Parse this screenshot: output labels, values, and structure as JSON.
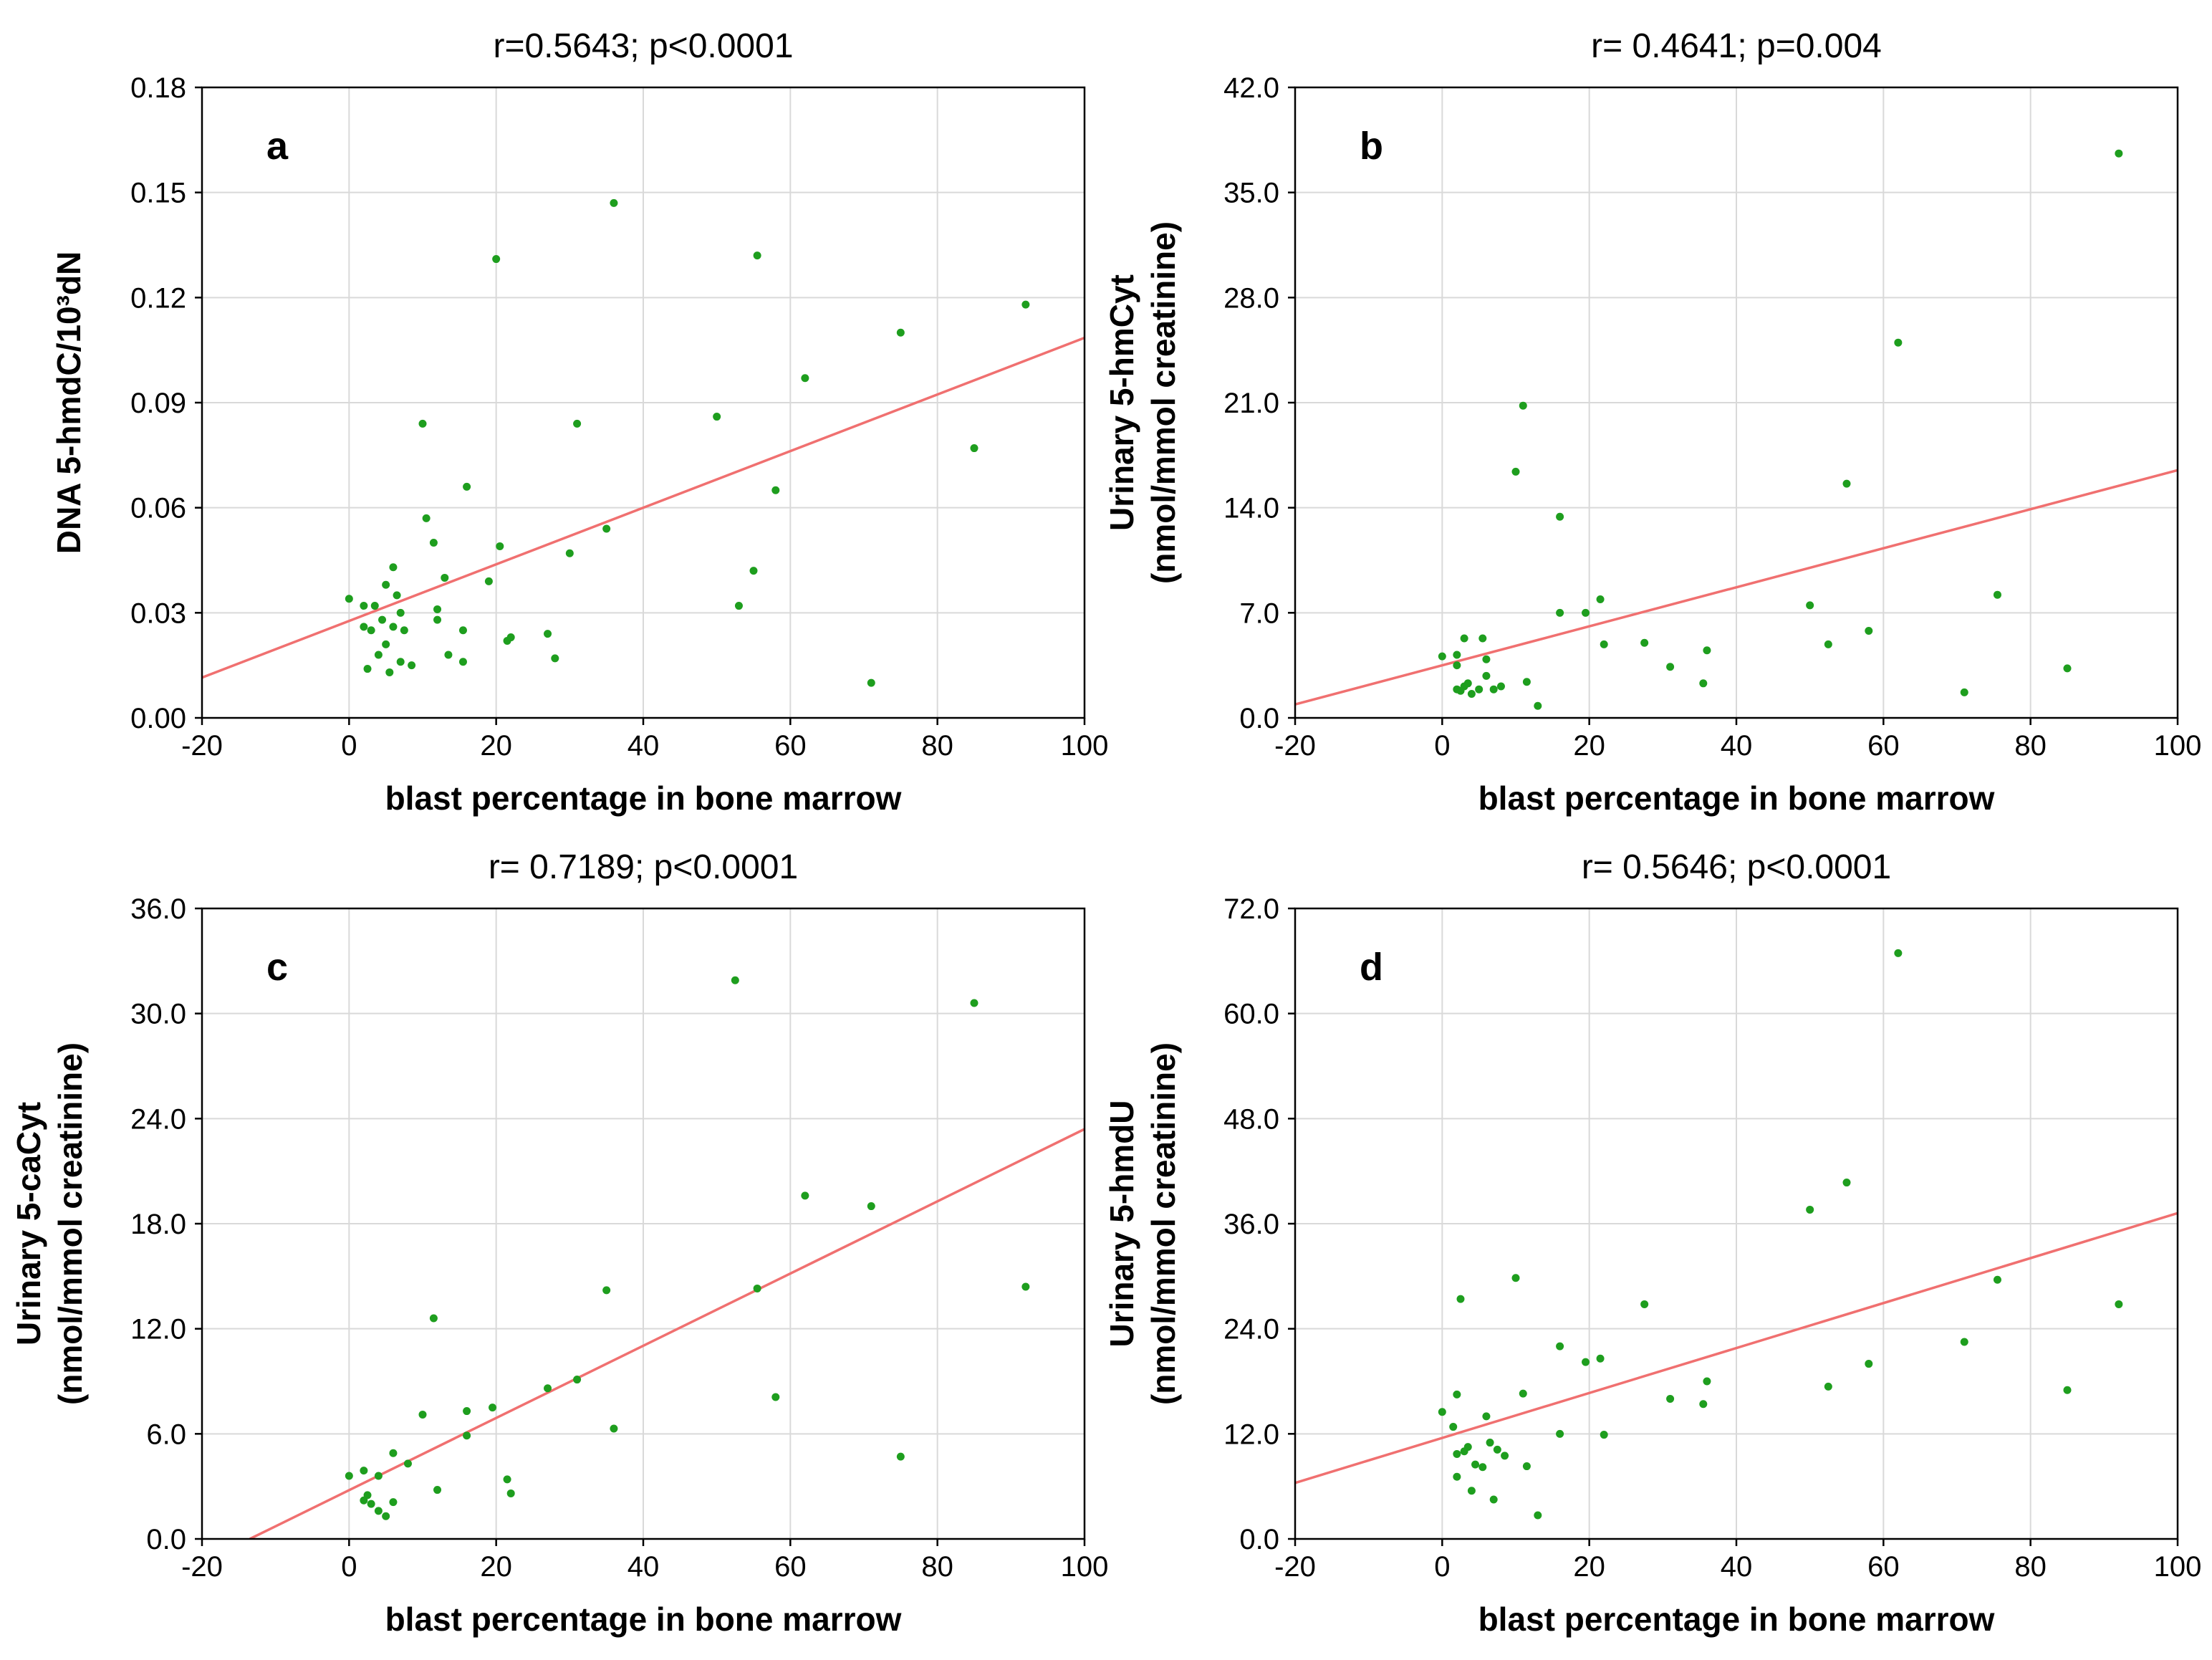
{
  "colors": {
    "points": "#1e9e1e",
    "fit_line": "#f07070",
    "grid": "#d9d9d9"
  },
  "chart_data": [
    {
      "panel": "a",
      "type": "scatter",
      "title": "r=0.5643; p<0.0001",
      "xlabel": "blast percentage in bone marrow",
      "ylabel": [
        "DNA 5-hmdC/10³dN"
      ],
      "xlim": [
        -20,
        100
      ],
      "ylim": [
        0,
        0.18
      ],
      "x_ticks": [
        "-20",
        "0",
        "20",
        "40",
        "60",
        "80",
        "100"
      ],
      "y_ticks": [
        "0.00",
        "0.03",
        "0.06",
        "0.09",
        "0.12",
        "0.15",
        "0.18"
      ],
      "grid": true,
      "fit_line": {
        "x": [
          -20,
          100
        ],
        "y": [
          0.0115,
          0.1085
        ]
      },
      "points": [
        [
          0,
          0.034
        ],
        [
          2,
          0.026
        ],
        [
          2,
          0.032
        ],
        [
          2.5,
          0.014
        ],
        [
          3,
          0.025
        ],
        [
          3.5,
          0.032
        ],
        [
          4,
          0.018
        ],
        [
          4.5,
          0.028
        ],
        [
          5,
          0.021
        ],
        [
          5,
          0.038
        ],
        [
          5.5,
          0.013
        ],
        [
          6,
          0.026
        ],
        [
          6,
          0.043
        ],
        [
          6.5,
          0.035
        ],
        [
          7,
          0.016
        ],
        [
          7,
          0.03
        ],
        [
          7.5,
          0.025
        ],
        [
          8.5,
          0.015
        ],
        [
          10,
          0.084
        ],
        [
          10.5,
          0.057
        ],
        [
          11.5,
          0.05
        ],
        [
          12,
          0.028
        ],
        [
          12,
          0.031
        ],
        [
          13,
          0.04
        ],
        [
          13.5,
          0.018
        ],
        [
          15.5,
          0.016
        ],
        [
          15.5,
          0.025
        ],
        [
          16,
          0.066
        ],
        [
          19,
          0.039
        ],
        [
          20,
          0.131
        ],
        [
          20.5,
          0.049
        ],
        [
          21.5,
          0.022
        ],
        [
          22,
          0.023
        ],
        [
          27,
          0.024
        ],
        [
          28,
          0.017
        ],
        [
          30,
          0.047
        ],
        [
          31,
          0.084
        ],
        [
          35,
          0.054
        ],
        [
          36,
          0.147
        ],
        [
          50,
          0.086
        ],
        [
          53,
          0.032
        ],
        [
          55,
          0.042
        ],
        [
          55.5,
          0.132
        ],
        [
          58,
          0.065
        ],
        [
          62,
          0.097
        ],
        [
          71,
          0.01
        ],
        [
          75,
          0.11
        ],
        [
          85,
          0.077
        ],
        [
          92,
          0.118
        ]
      ]
    },
    {
      "panel": "b",
      "type": "scatter",
      "title": "r= 0.4641; p=0.004",
      "xlabel": "blast percentage in bone marrow",
      "ylabel": [
        "Urinary 5-hmCyt",
        "(nmol/mmol creatinine)"
      ],
      "xlim": [
        -20,
        100
      ],
      "ylim": [
        0,
        42
      ],
      "x_ticks": [
        "-20",
        "0",
        "20",
        "40",
        "60",
        "80",
        "100"
      ],
      "y_ticks": [
        "0.0",
        "7.0",
        "14.0",
        "21.0",
        "28.0",
        "35.0",
        "42.0"
      ],
      "grid": true,
      "fit_line": {
        "x": [
          -20,
          100
        ],
        "y": [
          0.9,
          16.5
        ]
      },
      "points": [
        [
          0,
          4.1
        ],
        [
          2,
          3.5
        ],
        [
          2,
          1.9
        ],
        [
          2,
          4.2
        ],
        [
          2.5,
          1.8
        ],
        [
          3,
          2.1
        ],
        [
          3,
          5.3
        ],
        [
          3.5,
          2.3
        ],
        [
          4,
          1.6
        ],
        [
          5,
          1.9
        ],
        [
          5.5,
          5.3
        ],
        [
          6,
          3.9
        ],
        [
          6,
          2.8
        ],
        [
          7,
          1.9
        ],
        [
          8,
          2.1
        ],
        [
          10,
          16.4
        ],
        [
          11,
          20.8
        ],
        [
          11.5,
          2.4
        ],
        [
          13,
          0.8
        ],
        [
          16,
          7.0
        ],
        [
          16,
          13.4
        ],
        [
          19.5,
          7.0
        ],
        [
          21.5,
          7.9
        ],
        [
          22,
          4.9
        ],
        [
          27.5,
          5.0
        ],
        [
          31,
          3.4
        ],
        [
          35.5,
          2.3
        ],
        [
          36,
          4.5
        ],
        [
          50,
          7.5
        ],
        [
          52.5,
          4.9
        ],
        [
          55,
          15.6
        ],
        [
          58,
          5.8
        ],
        [
          62,
          25.0
        ],
        [
          71,
          1.7
        ],
        [
          75.5,
          8.2
        ],
        [
          85,
          3.3
        ],
        [
          92,
          37.6
        ]
      ]
    },
    {
      "panel": "c",
      "type": "scatter",
      "title": "r= 0.7189; p<0.0001",
      "xlabel": "blast percentage in bone marrow",
      "ylabel": [
        "Urinary 5-caCyt",
        "(nmol/mmol creatinine)"
      ],
      "xlim": [
        -20,
        100
      ],
      "ylim": [
        0,
        36
      ],
      "x_ticks": [
        "-20",
        "0",
        "20",
        "40",
        "60",
        "80",
        "100"
      ],
      "y_ticks": [
        "0.0",
        "6.0",
        "12.0",
        "18.0",
        "24.0",
        "30.0",
        "36.0"
      ],
      "grid": true,
      "fit_line": {
        "x": [
          -13.5,
          100
        ],
        "y": [
          0,
          23.4
        ]
      },
      "points": [
        [
          0,
          3.6
        ],
        [
          2,
          2.2
        ],
        [
          2,
          3.9
        ],
        [
          2.5,
          2.5
        ],
        [
          3,
          2.0
        ],
        [
          4,
          3.6
        ],
        [
          4,
          1.6
        ],
        [
          5,
          1.3
        ],
        [
          6,
          2.1
        ],
        [
          6,
          4.9
        ],
        [
          8,
          4.3
        ],
        [
          10,
          7.1
        ],
        [
          11.5,
          12.6
        ],
        [
          12,
          2.8
        ],
        [
          16,
          5.9
        ],
        [
          16,
          7.3
        ],
        [
          19.5,
          7.5
        ],
        [
          21.5,
          3.4
        ],
        [
          22,
          2.6
        ],
        [
          27,
          8.6
        ],
        [
          31,
          9.1
        ],
        [
          35,
          14.2
        ],
        [
          36,
          6.3
        ],
        [
          52.5,
          31.9
        ],
        [
          55.5,
          14.3
        ],
        [
          58,
          8.1
        ],
        [
          62,
          19.6
        ],
        [
          71,
          19.0
        ],
        [
          75,
          4.7
        ],
        [
          85,
          30.6
        ],
        [
          92,
          14.4
        ]
      ]
    },
    {
      "panel": "d",
      "type": "scatter",
      "title": "r= 0.5646; p<0.0001",
      "xlabel": "blast percentage in bone marrow",
      "ylabel": [
        "Urinary 5-hmdU",
        "(nmol/mmol creatinine)"
      ],
      "xlim": [
        -20,
        100
      ],
      "ylim": [
        0,
        72
      ],
      "x_ticks": [
        "-20",
        "0",
        "20",
        "40",
        "60",
        "80",
        "100"
      ],
      "y_ticks": [
        "0.0",
        "12.0",
        "24.0",
        "36.0",
        "48.0",
        "60.0",
        "72.0"
      ],
      "grid": true,
      "fit_line": {
        "x": [
          -20,
          100
        ],
        "y": [
          6.4,
          37.2
        ]
      },
      "points": [
        [
          0,
          14.5
        ],
        [
          1.5,
          12.8
        ],
        [
          2,
          16.5
        ],
        [
          2,
          9.7
        ],
        [
          2,
          7.1
        ],
        [
          2.5,
          27.4
        ],
        [
          3,
          10.0
        ],
        [
          3.5,
          10.5
        ],
        [
          4,
          5.5
        ],
        [
          4.5,
          8.5
        ],
        [
          5.5,
          8.2
        ],
        [
          6,
          14.0
        ],
        [
          6.5,
          11.0
        ],
        [
          7,
          4.5
        ],
        [
          7.5,
          10.2
        ],
        [
          8.5,
          9.5
        ],
        [
          10,
          29.8
        ],
        [
          11,
          16.6
        ],
        [
          11.5,
          8.3
        ],
        [
          13,
          2.7
        ],
        [
          16,
          12.0
        ],
        [
          16,
          22.0
        ],
        [
          19.5,
          20.2
        ],
        [
          21.5,
          20.6
        ],
        [
          22,
          11.9
        ],
        [
          27.5,
          26.8
        ],
        [
          31,
          16.0
        ],
        [
          35.5,
          15.4
        ],
        [
          36,
          18.0
        ],
        [
          50,
          37.6
        ],
        [
          52.5,
          17.4
        ],
        [
          55,
          40.7
        ],
        [
          58,
          20.0
        ],
        [
          62,
          66.9
        ],
        [
          71,
          22.5
        ],
        [
          75.5,
          29.6
        ],
        [
          85,
          17.0
        ],
        [
          92,
          26.8
        ]
      ]
    }
  ]
}
